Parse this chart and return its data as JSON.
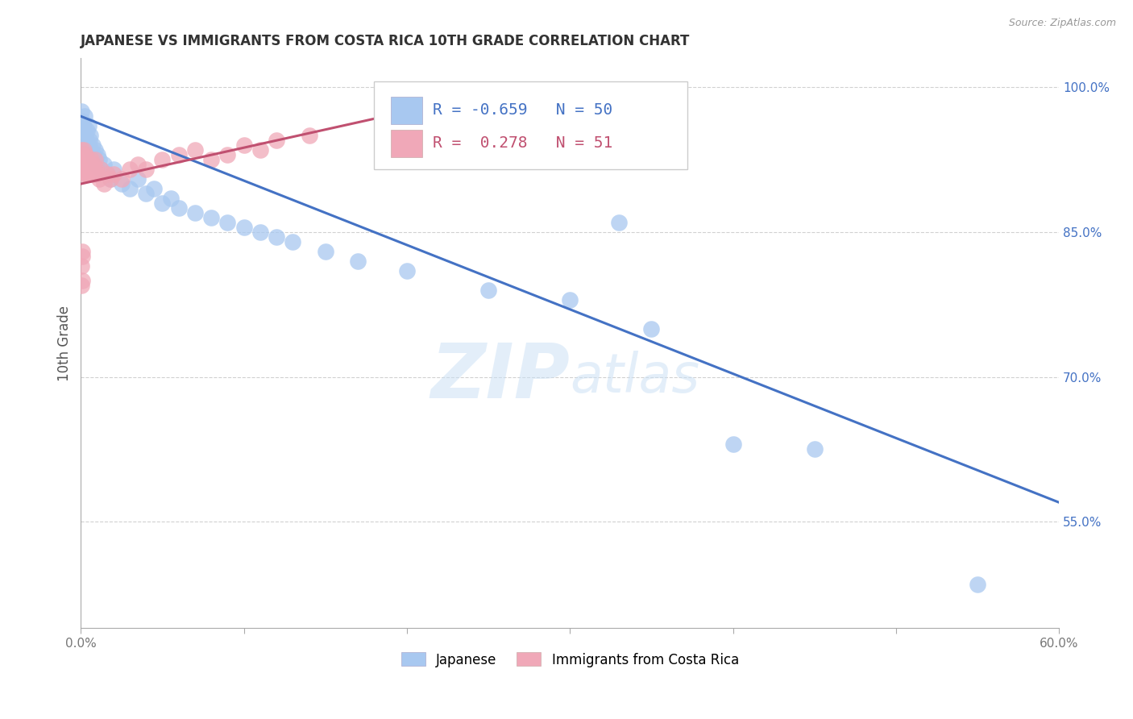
{
  "title": "JAPANESE VS IMMIGRANTS FROM COSTA RICA 10TH GRADE CORRELATION CHART",
  "source": "Source: ZipAtlas.com",
  "ylabel": "10th Grade",
  "yticks": [
    55.0,
    70.0,
    85.0,
    100.0
  ],
  "ytick_labels": [
    "55.0%",
    "70.0%",
    "85.0%",
    "100.0%"
  ],
  "watermark_zip": "ZIP",
  "watermark_atlas": "atlas",
  "legend_labels": [
    "Japanese",
    "Immigrants from Costa Rica"
  ],
  "legend_R": [
    -0.659,
    0.278
  ],
  "legend_N": [
    50,
    51
  ],
  "blue_color": "#a8c8f0",
  "pink_color": "#f0a8b8",
  "blue_line_color": "#4472c4",
  "pink_line_color": "#c05070",
  "blue_scatter": [
    [
      0.05,
      97.5
    ],
    [
      0.1,
      96.5
    ],
    [
      0.15,
      95.5
    ],
    [
      0.2,
      96.0
    ],
    [
      0.25,
      97.0
    ],
    [
      0.3,
      95.0
    ],
    [
      0.35,
      94.5
    ],
    [
      0.4,
      95.5
    ],
    [
      0.45,
      94.0
    ],
    [
      0.5,
      96.0
    ],
    [
      0.55,
      94.5
    ],
    [
      0.6,
      95.0
    ],
    [
      0.65,
      93.5
    ],
    [
      0.7,
      94.0
    ],
    [
      0.75,
      93.0
    ],
    [
      0.8,
      92.5
    ],
    [
      0.85,
      93.5
    ],
    [
      0.9,
      92.0
    ],
    [
      1.0,
      93.0
    ],
    [
      1.1,
      92.5
    ],
    [
      1.2,
      91.5
    ],
    [
      1.4,
      92.0
    ],
    [
      1.6,
      91.0
    ],
    [
      1.8,
      90.5
    ],
    [
      2.0,
      91.5
    ],
    [
      2.5,
      90.0
    ],
    [
      3.0,
      89.5
    ],
    [
      3.5,
      90.5
    ],
    [
      4.0,
      89.0
    ],
    [
      4.5,
      89.5
    ],
    [
      5.0,
      88.0
    ],
    [
      5.5,
      88.5
    ],
    [
      6.0,
      87.5
    ],
    [
      7.0,
      87.0
    ],
    [
      8.0,
      86.5
    ],
    [
      9.0,
      86.0
    ],
    [
      10.0,
      85.5
    ],
    [
      11.0,
      85.0
    ],
    [
      12.0,
      84.5
    ],
    [
      13.0,
      84.0
    ],
    [
      15.0,
      83.0
    ],
    [
      17.0,
      82.0
    ],
    [
      20.0,
      81.0
    ],
    [
      25.0,
      79.0
    ],
    [
      30.0,
      78.0
    ],
    [
      33.0,
      86.0
    ],
    [
      35.0,
      75.0
    ],
    [
      40.0,
      63.0
    ],
    [
      45.0,
      62.5
    ],
    [
      55.0,
      48.5
    ]
  ],
  "pink_scatter": [
    [
      0.05,
      93.5
    ],
    [
      0.08,
      92.0
    ],
    [
      0.1,
      93.0
    ],
    [
      0.12,
      91.5
    ],
    [
      0.15,
      92.5
    ],
    [
      0.18,
      91.0
    ],
    [
      0.2,
      93.5
    ],
    [
      0.22,
      92.0
    ],
    [
      0.25,
      91.5
    ],
    [
      0.28,
      92.5
    ],
    [
      0.3,
      93.0
    ],
    [
      0.32,
      91.0
    ],
    [
      0.35,
      92.0
    ],
    [
      0.38,
      91.5
    ],
    [
      0.4,
      92.5
    ],
    [
      0.42,
      91.0
    ],
    [
      0.45,
      92.0
    ],
    [
      0.5,
      91.5
    ],
    [
      0.55,
      92.0
    ],
    [
      0.6,
      91.0
    ],
    [
      0.65,
      92.5
    ],
    [
      0.7,
      91.5
    ],
    [
      0.75,
      92.0
    ],
    [
      0.8,
      91.0
    ],
    [
      0.85,
      92.5
    ],
    [
      0.9,
      91.5
    ],
    [
      1.0,
      91.0
    ],
    [
      1.1,
      90.5
    ],
    [
      1.2,
      91.5
    ],
    [
      1.4,
      90.0
    ],
    [
      1.6,
      91.0
    ],
    [
      1.8,
      90.5
    ],
    [
      2.0,
      91.0
    ],
    [
      2.5,
      90.5
    ],
    [
      3.0,
      91.5
    ],
    [
      3.5,
      92.0
    ],
    [
      4.0,
      91.5
    ],
    [
      5.0,
      92.5
    ],
    [
      6.0,
      93.0
    ],
    [
      7.0,
      93.5
    ],
    [
      8.0,
      92.5
    ],
    [
      9.0,
      93.0
    ],
    [
      10.0,
      94.0
    ],
    [
      11.0,
      93.5
    ],
    [
      12.0,
      94.5
    ],
    [
      14.0,
      95.0
    ],
    [
      0.05,
      81.5
    ],
    [
      0.07,
      82.5
    ],
    [
      0.06,
      80.0
    ],
    [
      0.09,
      83.0
    ],
    [
      0.04,
      79.5
    ]
  ],
  "xmin": 0.0,
  "xmax": 60.0,
  "ymin": 44.0,
  "ymax": 103.0,
  "blue_line_x": [
    0.0,
    60.0
  ],
  "blue_line_y": [
    97.0,
    57.0
  ],
  "pink_line_x": [
    0.0,
    20.0
  ],
  "pink_line_y": [
    90.0,
    97.5
  ]
}
